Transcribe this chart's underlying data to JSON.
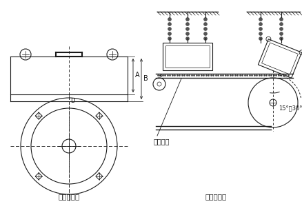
{
  "left_label": "外形尺寸图",
  "right_label": "安装示意图",
  "label_A": "A",
  "label_B": "B",
  "label_D": "D",
  "label_angle": "15°～30°",
  "label_belt": "无磁托辊",
  "bg_color": "#ffffff",
  "line_color": "#1a1a1a"
}
